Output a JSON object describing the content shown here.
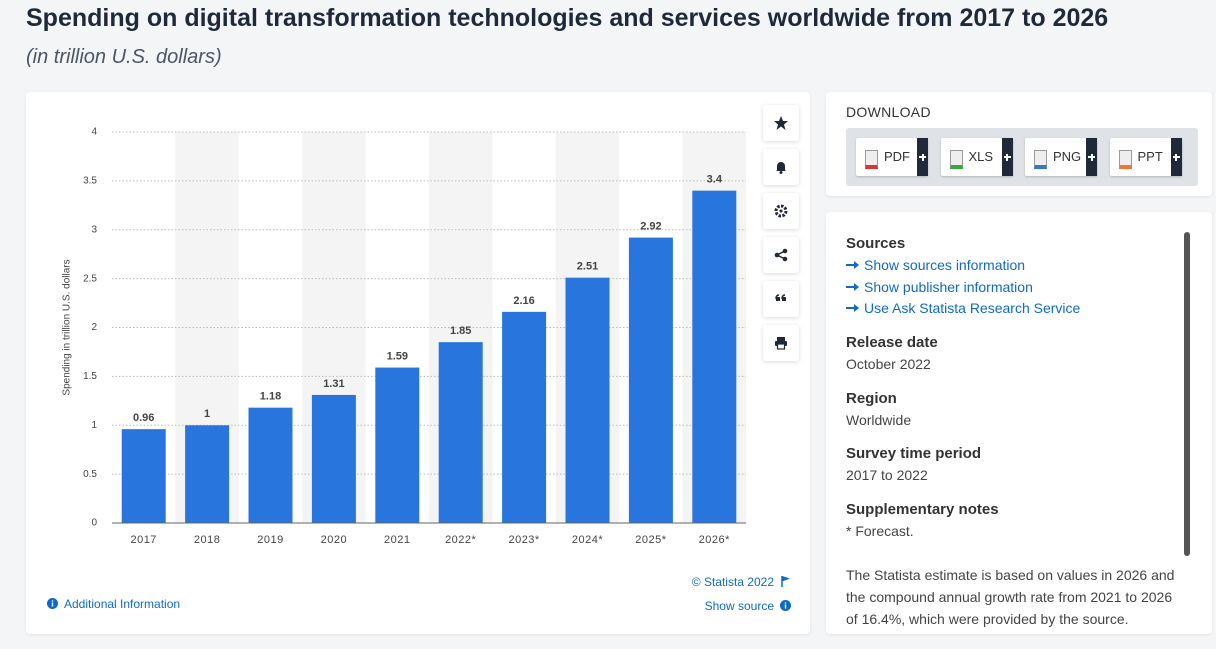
{
  "header": {
    "title": "Spending on digital transformation technologies and services worldwide from 2017 to 2026",
    "subtitle": "(in trillion U.S. dollars)"
  },
  "chart_data": {
    "type": "bar",
    "y_label": "Spending in trillion U.S. dollars",
    "categories": [
      "2017",
      "2018",
      "2019",
      "2020",
      "2021",
      "2022*",
      "2023*",
      "2024*",
      "2025*",
      "2026*"
    ],
    "values": [
      0.96,
      1,
      1.18,
      1.31,
      1.59,
      1.85,
      2.16,
      2.51,
      2.92,
      3.4
    ],
    "color": "#2876dd",
    "ylim": [
      0,
      4
    ],
    "yticks": [
      0,
      0.5,
      1,
      1.5,
      2,
      2.5,
      3,
      3.5,
      4
    ],
    "grid": true
  },
  "footer": {
    "copyright": "© Statista 2022",
    "additional_info": "Additional Information",
    "show_source": "Show source"
  },
  "download": {
    "title": "DOWNLOAD",
    "formats": [
      "PDF",
      "XLS",
      "PNG",
      "PPT"
    ]
  },
  "info": {
    "sources": {
      "heading": "Sources",
      "links": [
        "Show sources information",
        "Show publisher information",
        "Use Ask Statista Research Service"
      ]
    },
    "sections": [
      {
        "heading": "Release date",
        "text": "October 2022"
      },
      {
        "heading": "Region",
        "text": "Worldwide"
      },
      {
        "heading": "Survey time period",
        "text": "2017 to 2022"
      },
      {
        "heading": "Supplementary notes",
        "text": "* Forecast."
      }
    ],
    "note": "The Statista estimate is based on values in 2026 and the compound annual growth rate from 2021 to 2026 of 16.4%, which were provided by the source."
  }
}
